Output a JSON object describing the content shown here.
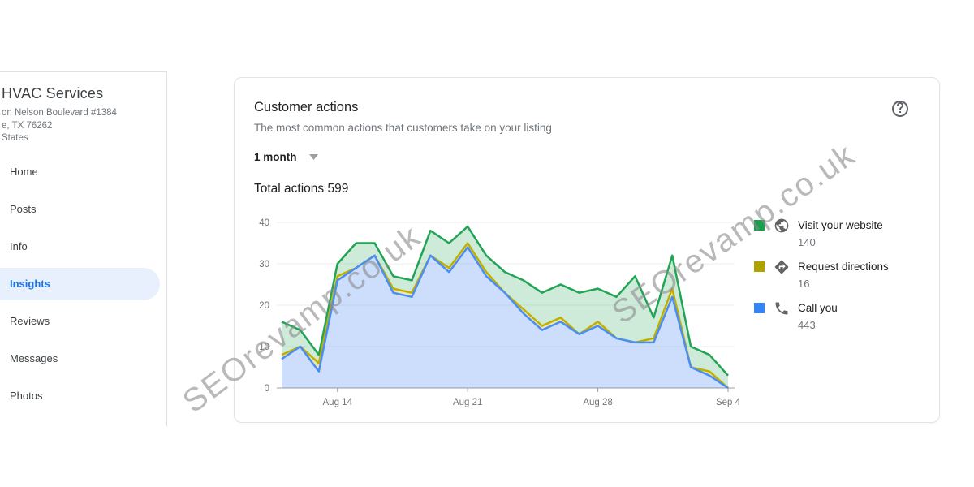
{
  "sidebar": {
    "business_name": "HVAC Services",
    "address_lines": [
      "on Nelson Boulevard #1384",
      "e, TX 76262",
      "States"
    ],
    "items": [
      {
        "label": "Home",
        "active": false
      },
      {
        "label": "Posts",
        "active": false
      },
      {
        "label": "Info",
        "active": false
      },
      {
        "label": "Insights",
        "active": true
      },
      {
        "label": "Reviews",
        "active": false
      },
      {
        "label": "Messages",
        "active": false
      },
      {
        "label": "Photos",
        "active": false
      }
    ],
    "active_color": "#1a73e8",
    "active_bg": "#e8f0fe"
  },
  "card": {
    "title": "Customer actions",
    "subtitle": "The most common actions that customers take on your listing",
    "period_selector": {
      "value": "1 month",
      "icon": "chevron-down-icon"
    },
    "total_label": "Total actions 599",
    "help": {
      "icon": "help-circle-icon"
    }
  },
  "legend": [
    {
      "label": "Visit your website",
      "count": "140",
      "color": "#17a04b",
      "icon": "globe-icon"
    },
    {
      "label": "Request directions",
      "count": "16",
      "color": "#aea300",
      "icon": "directions-icon"
    },
    {
      "label": "Call you",
      "count": "443",
      "color": "#3486f6",
      "icon": "phone-icon"
    }
  ],
  "watermark": {
    "text": "SEOrevamp.co.uk"
  },
  "chart_data": {
    "type": "area",
    "stacked": true,
    "title": "Customer actions",
    "xlabel": "",
    "ylabel": "",
    "ylim": [
      0,
      40
    ],
    "yticks": [
      0,
      10,
      20,
      30,
      40
    ],
    "grid": true,
    "legend_position": "right",
    "x": [
      "Aug 11",
      "Aug 12",
      "Aug 13",
      "Aug 14",
      "Aug 15",
      "Aug 16",
      "Aug 17",
      "Aug 18",
      "Aug 19",
      "Aug 20",
      "Aug 21",
      "Aug 22",
      "Aug 23",
      "Aug 24",
      "Aug 25",
      "Aug 26",
      "Aug 27",
      "Aug 28",
      "Aug 29",
      "Aug 30",
      "Aug 31",
      "Sep 1",
      "Sep 2",
      "Sep 3",
      "Sep 4"
    ],
    "x_tick_labels": [
      "Aug 14",
      "Aug 21",
      "Aug 28",
      "Sep 4"
    ],
    "x_tick_indices": [
      3,
      10,
      17,
      24
    ],
    "series": [
      {
        "name": "Call you",
        "color": "#4a8df5",
        "fill": "rgba(66,133,244,0.27)",
        "values": [
          7,
          10,
          4,
          26,
          29,
          32,
          23,
          22,
          32,
          28,
          34,
          27,
          23,
          18,
          14,
          16,
          13,
          15,
          12,
          11,
          11,
          22,
          5,
          3,
          0
        ]
      },
      {
        "name": "Request directions",
        "color": "#bfb000",
        "fill": "rgba(190,175,0,0.30)",
        "values": [
          1,
          0,
          2,
          1,
          0,
          0,
          1,
          1,
          0,
          1,
          1,
          1,
          0,
          1,
          1,
          1,
          0,
          1,
          0,
          0,
          1,
          2,
          0,
          1,
          0
        ]
      },
      {
        "name": "Visit your website",
        "color": "#22a455",
        "fill": "rgba(34,164,85,0.22)",
        "values": [
          8,
          4,
          2,
          3,
          6,
          3,
          3,
          3,
          6,
          6,
          4,
          4,
          5,
          7,
          8,
          8,
          10,
          8,
          10,
          16,
          5,
          8,
          5,
          4,
          3
        ]
      }
    ]
  }
}
